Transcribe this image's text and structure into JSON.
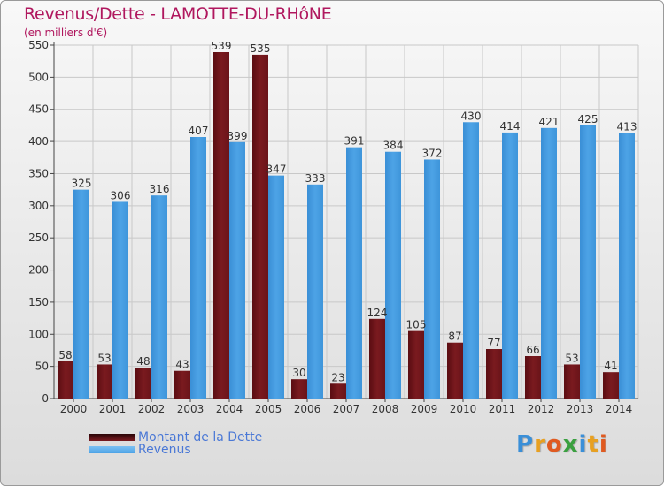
{
  "header": {
    "title": "Revenus/Dette - LAMOTTE-DU-RHôNE",
    "subtitle": "(en milliers d'€)"
  },
  "logo": {
    "text": "Proxiti",
    "letters": [
      {
        "ch": "P",
        "color": "#3a8fd8"
      },
      {
        "ch": "r",
        "color": "#e8a020"
      },
      {
        "ch": "o",
        "color": "#e05a20"
      },
      {
        "ch": "x",
        "color": "#3aa040"
      },
      {
        "ch": "i",
        "color": "#3a8fd8"
      },
      {
        "ch": "t",
        "color": "#e8a020"
      },
      {
        "ch": "i",
        "color": "#e05a20"
      }
    ]
  },
  "colors": {
    "dette": "#7a1a1f",
    "revenus": "#4da3e6",
    "axis": "#444444",
    "grid": "#c8c8c8"
  },
  "chart_data": {
    "type": "bar",
    "title": "Revenus/Dette - LAMOTTE-DU-RHôNE",
    "ylabel": "(en milliers d'€)",
    "xlabel": "",
    "ylim": [
      0,
      550
    ],
    "ytick_step": 50,
    "grid": true,
    "legend_position": "bottom-left",
    "categories": [
      "2000",
      "2001",
      "2002",
      "2003",
      "2004",
      "2005",
      "2006",
      "2007",
      "2008",
      "2009",
      "2010",
      "2011",
      "2012",
      "2013",
      "2014"
    ],
    "series": [
      {
        "name": "Montant de la Dette",
        "values": [
          58,
          53,
          48,
          43,
          539,
          535,
          30,
          23,
          124,
          105,
          87,
          77,
          66,
          53,
          41
        ]
      },
      {
        "name": "Revenus",
        "values": [
          325,
          306,
          316,
          407,
          399,
          347,
          333,
          391,
          384,
          372,
          430,
          414,
          421,
          425,
          413
        ]
      }
    ]
  }
}
